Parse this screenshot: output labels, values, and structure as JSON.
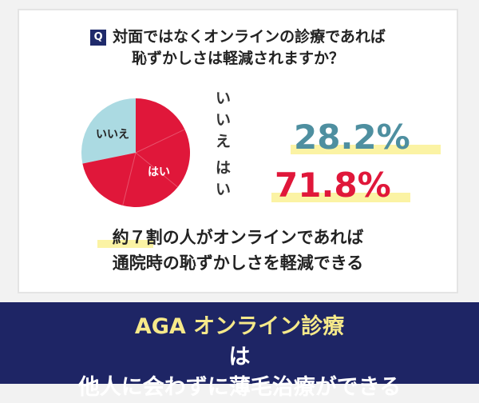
{
  "question": {
    "badge": "Q",
    "line1": "対面ではなくオンラインの診療であれば",
    "line2": "恥ずかしさは軽減されますか？"
  },
  "chart_data": {
    "type": "pie",
    "slices": [
      {
        "label": "いいえ",
        "value": 28.2,
        "display": "28.2%",
        "color": "#abdae2"
      },
      {
        "label": "はい",
        "value": 71.8,
        "display": "71.8%",
        "color": "#e0173a"
      }
    ]
  },
  "conclusion": {
    "line1": "約７割の人がオンラインであれば",
    "line2": "通院時の恥ずかしさを軽減できる"
  },
  "banner": {
    "line1_accent": "AGA オンライン診療",
    "line1_rest": "は",
    "line2": "他人に会わずに薄毛治療ができる"
  }
}
